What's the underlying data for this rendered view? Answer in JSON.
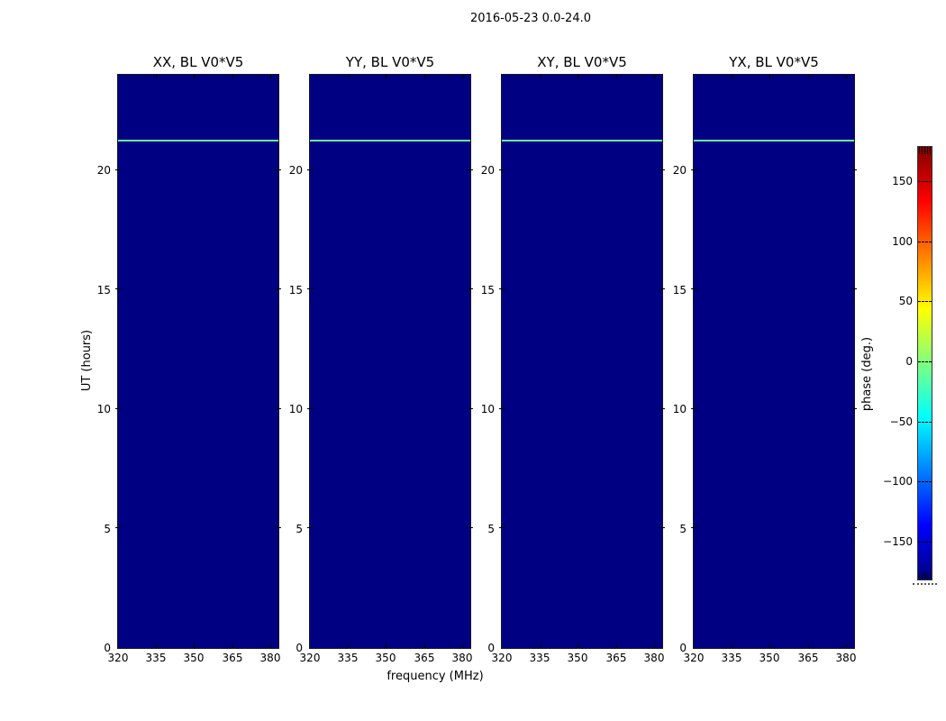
{
  "figure": {
    "suptitle": "2016-05-23 0.0-24.0"
  },
  "axis": {
    "xlabel": "frequency (MHz)",
    "ylabel": "UT (hours)",
    "xticks": [
      "320",
      "335",
      "350",
      "365",
      "380"
    ],
    "yticks": [
      "0",
      "5",
      "10",
      "15",
      "20"
    ]
  },
  "panels": [
    {
      "title": "XX, BL V0*V5"
    },
    {
      "title": "YY, BL V0*V5"
    },
    {
      "title": "XY, BL V0*V5"
    },
    {
      "title": "YX, BL V0*V5"
    }
  ],
  "colorbar": {
    "label": "phase (deg.)",
    "ticks": [
      "150",
      "100",
      "50",
      "0",
      "−50",
      "−100",
      "−150"
    ]
  },
  "colors": {
    "panel_background": "#000083",
    "stripe_green": "#6fe99c",
    "jet_bottom": "#000080",
    "jet_top": "#800000"
  },
  "chart_data": {
    "type": "heatmap",
    "suptitle": "2016-05-23 0.0-24.0",
    "panel_titles": [
      "XX, BL V0*V5",
      "YY, BL V0*V5",
      "XY, BL V0*V5",
      "YX, BL V0*V5"
    ],
    "xlabel": "frequency (MHz)",
    "ylabel": "UT (hours)",
    "xlim": [
      320,
      384
    ],
    "ylim": [
      0,
      24
    ],
    "xticks": [
      320,
      335,
      350,
      365,
      380
    ],
    "yticks": [
      0,
      5,
      10,
      15,
      20
    ],
    "colormap": "jet",
    "colorbar": {
      "label": "phase (deg.)",
      "ticks": [
        150,
        100,
        50,
        0,
        -50,
        -100,
        -150
      ],
      "range_deg": [
        -180,
        180
      ]
    },
    "field": "uniform phase near -180 deg (dark navy) over all frequencies and times in all four panels",
    "features": [
      {
        "type": "horizontal-stripe",
        "ut_hours": 21.2,
        "phase_deg": 20,
        "span": "full frequency range, present in all four panels"
      }
    ],
    "grid": false,
    "legend": false
  }
}
